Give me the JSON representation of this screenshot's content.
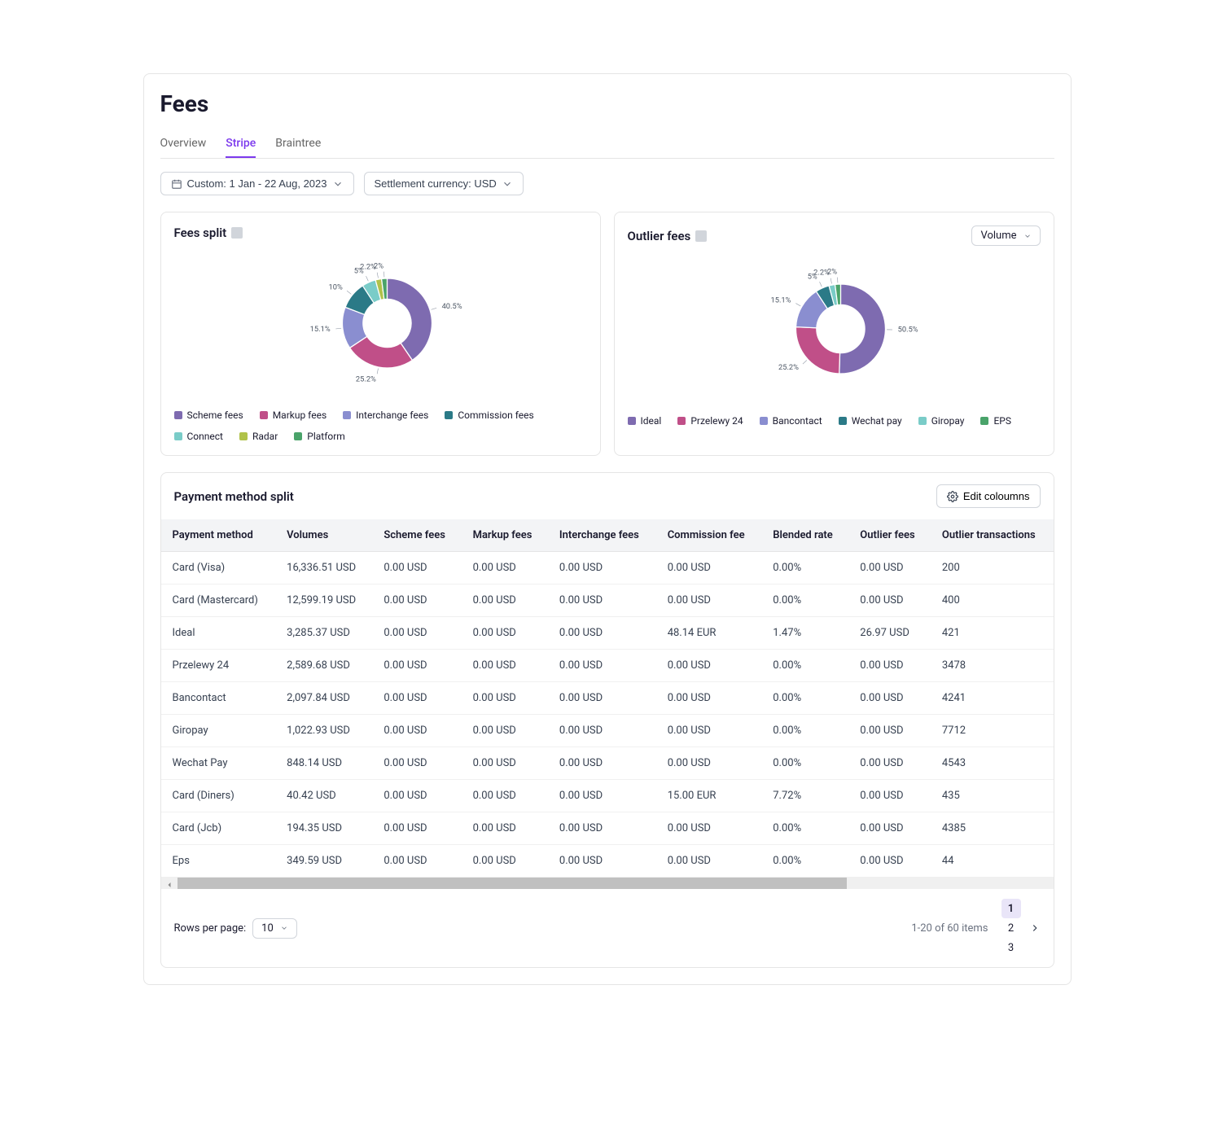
{
  "page": {
    "title": "Fees"
  },
  "tabs": [
    {
      "label": "Overview",
      "active": false
    },
    {
      "label": "Stripe",
      "active": true
    },
    {
      "label": "Braintree",
      "active": false
    }
  ],
  "filters": {
    "date": "Custom: 1 Jan - 22 Aug, 2023",
    "currency": "Settlement currency: USD"
  },
  "fees_split_chart": {
    "title": "Fees split",
    "type": "donut",
    "slices": [
      {
        "label": "Scheme fees",
        "pct": 40.5,
        "color": "#7e6bb0"
      },
      {
        "label": "Markup fees",
        "pct": 25.2,
        "color": "#c04f88"
      },
      {
        "label": "Interchange fees",
        "pct": 15.1,
        "color": "#8a8ed0"
      },
      {
        "label": "Commission fees",
        "pct": 10,
        "color": "#2b7a87"
      },
      {
        "label": "Connect",
        "pct": 5,
        "color": "#7accc8"
      },
      {
        "label": "Radar",
        "pct": 2.2,
        "color": "#b0c24a"
      },
      {
        "label": "Platform",
        "pct": 2,
        "color": "#4aa36a"
      }
    ],
    "legend": [
      {
        "label": "Scheme fees",
        "color": "#7e6bb0"
      },
      {
        "label": "Markup fees",
        "color": "#c04f88"
      },
      {
        "label": "Interchange fees",
        "color": "#8a8ed0"
      },
      {
        "label": "Commission fees",
        "color": "#2b7a87"
      },
      {
        "label": "Connect",
        "color": "#7accc8"
      },
      {
        "label": "Radar",
        "color": "#b0c24a"
      },
      {
        "label": "Platform",
        "color": "#4aa36a"
      }
    ]
  },
  "outlier_fees_chart": {
    "title": "Outlier fees",
    "select_label": "Volume",
    "type": "donut",
    "slices": [
      {
        "label": "Ideal",
        "pct": 50.5,
        "color": "#7e6bb0"
      },
      {
        "label": "Przelewy 24",
        "pct": 25.2,
        "color": "#c04f88"
      },
      {
        "label": "Bancontact",
        "pct": 15.1,
        "color": "#8a8ed0"
      },
      {
        "label": "Wechat pay",
        "pct": 5,
        "color": "#2b7a87"
      },
      {
        "label": "Giropay",
        "pct": 2.2,
        "color": "#7accc8"
      },
      {
        "label": "EPS",
        "pct": 2,
        "color": "#4aa36a"
      }
    ],
    "legend": [
      {
        "label": "Ideal",
        "color": "#7e6bb0"
      },
      {
        "label": "Przelewy 24",
        "color": "#c04f88"
      },
      {
        "label": "Bancontact",
        "color": "#8a8ed0"
      },
      {
        "label": "Wechat pay",
        "color": "#2b7a87"
      },
      {
        "label": "Giropay",
        "color": "#7accc8"
      },
      {
        "label": "EPS",
        "color": "#4aa36a"
      }
    ]
  },
  "table": {
    "title": "Payment method split",
    "edit_columns_label": "Edit coloumns",
    "columns": [
      "Payment method",
      "Volumes",
      "Scheme fees",
      "Markup fees",
      "Interchange fees",
      "Commission fee",
      "Blended rate",
      "Outlier fees",
      "Outlier transactions"
    ],
    "rows": [
      [
        "Card (Visa)",
        "16,336.51 USD",
        "0.00 USD",
        "0.00 USD",
        "0.00 USD",
        "0.00 USD",
        "0.00%",
        "0.00 USD",
        "200"
      ],
      [
        "Card (Mastercard)",
        "12,599.19 USD",
        "0.00 USD",
        "0.00 USD",
        "0.00 USD",
        "0.00 USD",
        "0.00%",
        "0.00 USD",
        "400"
      ],
      [
        "Ideal",
        "3,285.37 USD",
        "0.00 USD",
        "0.00 USD",
        "0.00 USD",
        "48.14 EUR",
        "1.47%",
        "26.97 USD",
        "421"
      ],
      [
        "Przelewy 24",
        "2,589.68 USD",
        "0.00 USD",
        "0.00 USD",
        "0.00 USD",
        "0.00 USD",
        "0.00%",
        "0.00 USD",
        "3478"
      ],
      [
        "Bancontact",
        "2,097.84 USD",
        "0.00 USD",
        "0.00 USD",
        "0.00 USD",
        "0.00 USD",
        "0.00%",
        "0.00 USD",
        "4241"
      ],
      [
        "Giropay",
        "1,022.93 USD",
        "0.00 USD",
        "0.00 USD",
        "0.00 USD",
        "0.00 USD",
        "0.00%",
        "0.00 USD",
        "7712"
      ],
      [
        "Wechat Pay",
        "848.14 USD",
        "0.00 USD",
        "0.00 USD",
        "0.00 USD",
        "0.00 USD",
        "0.00%",
        "0.00 USD",
        "4543"
      ],
      [
        "Card (Diners)",
        "40.42 USD",
        "0.00 USD",
        "0.00 USD",
        "0.00 USD",
        "15.00 EUR",
        "7.72%",
        "0.00 USD",
        "435"
      ],
      [
        "Card (Jcb)",
        "194.35 USD",
        "0.00 USD",
        "0.00 USD",
        "0.00 USD",
        "0.00 USD",
        "0.00%",
        "0.00 USD",
        "4385"
      ],
      [
        "Eps",
        "349.59 USD",
        "0.00 USD",
        "0.00 USD",
        "0.00 USD",
        "0.00 USD",
        "0.00%",
        "0.00 USD",
        "44"
      ]
    ],
    "rows_per_page_label": "Rows per page:",
    "rows_per_page_value": "10",
    "page_info": "1-20 of 60 items",
    "pages": [
      "1",
      "2",
      "3"
    ],
    "active_page": 0
  }
}
